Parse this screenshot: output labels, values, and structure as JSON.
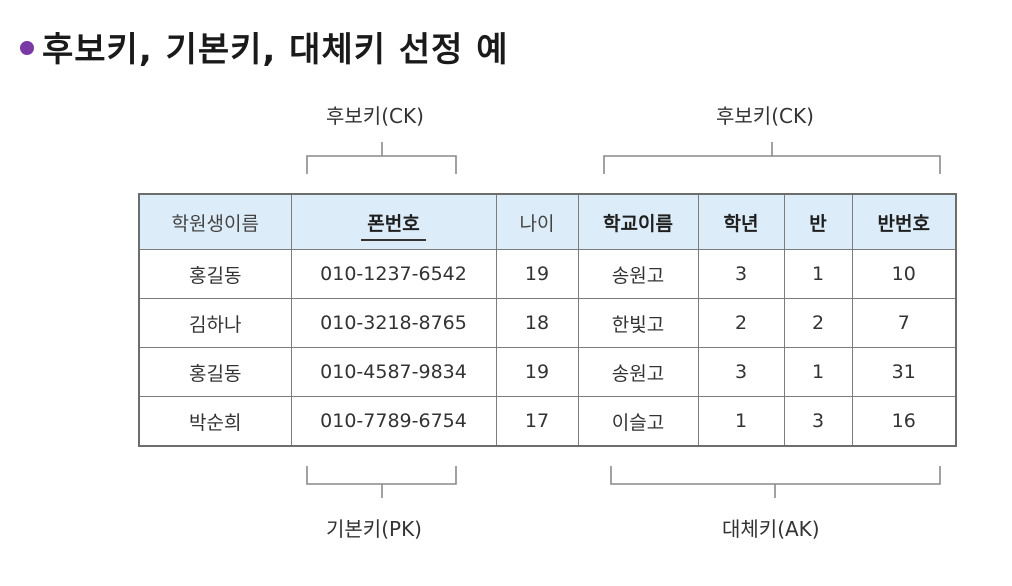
{
  "title": "후보키, 기본키, 대체키 선정 예",
  "labels": {
    "ck_left": "후보키(CK)",
    "ck_right": "후보키(CK)",
    "pk": "기본키(PK)",
    "ak": "대체키(AK)"
  },
  "colors": {
    "bullet": "#7a3aa6",
    "header_bg": "#dcecf8"
  },
  "table": {
    "headers": [
      "학원생이름",
      "폰번호",
      "나이",
      "학교이름",
      "학년",
      "반",
      "반번호"
    ],
    "rows": [
      [
        "홍길동",
        "010-1237-6542",
        "19",
        "송원고",
        "3",
        "1",
        "10"
      ],
      [
        "김하나",
        "010-3218-8765",
        "18",
        "한빛고",
        "2",
        "2",
        "7"
      ],
      [
        "홍길동",
        "010-4587-9834",
        "19",
        "송원고",
        "3",
        "1",
        "31"
      ],
      [
        "박순희",
        "010-7789-6754",
        "17",
        "이슬고",
        "1",
        "3",
        "16"
      ]
    ]
  }
}
